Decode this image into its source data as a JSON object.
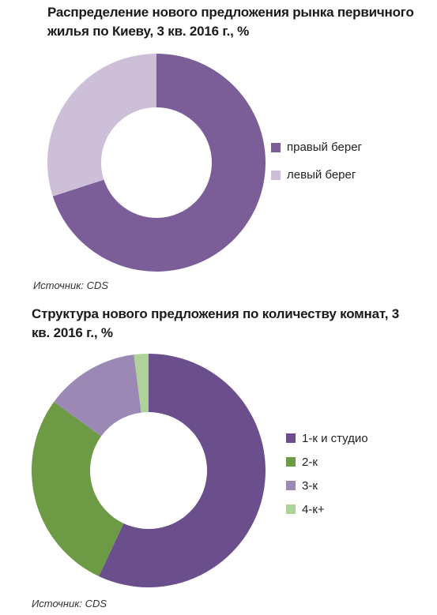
{
  "charts": [
    {
      "title": "Распределение нового предложения рынка первичного жилья по Киеву, 3 кв. 2016 г., %",
      "source": "Источник: CDS"
    },
    {
      "title": "Структура нового предложения по количеству комнат, 3 кв. 2016 г., %",
      "source": "Источник: CDS"
    }
  ],
  "chart_data": [
    {
      "type": "pie",
      "variant": "donut",
      "title": "Распределение нового предложения рынка первичного жилья по Киеву, 3 кв. 2016 г., %",
      "categories": [
        "правый берег",
        "левый берег"
      ],
      "values": [
        70,
        30
      ],
      "colors": [
        "#7b5e98",
        "#cdbfd8"
      ],
      "legend": "right"
    },
    {
      "type": "pie",
      "variant": "donut",
      "title": "Структура нового предложения по количеству комнат, 3 кв. 2016 г., %",
      "categories": [
        "1-к и студио",
        "2-к",
        "3-к",
        "4-к+"
      ],
      "values": [
        57,
        28,
        13,
        2
      ],
      "colors": [
        "#6b4f8c",
        "#6d9a45",
        "#9c88b4",
        "#aed39a"
      ],
      "legend": "right"
    }
  ]
}
